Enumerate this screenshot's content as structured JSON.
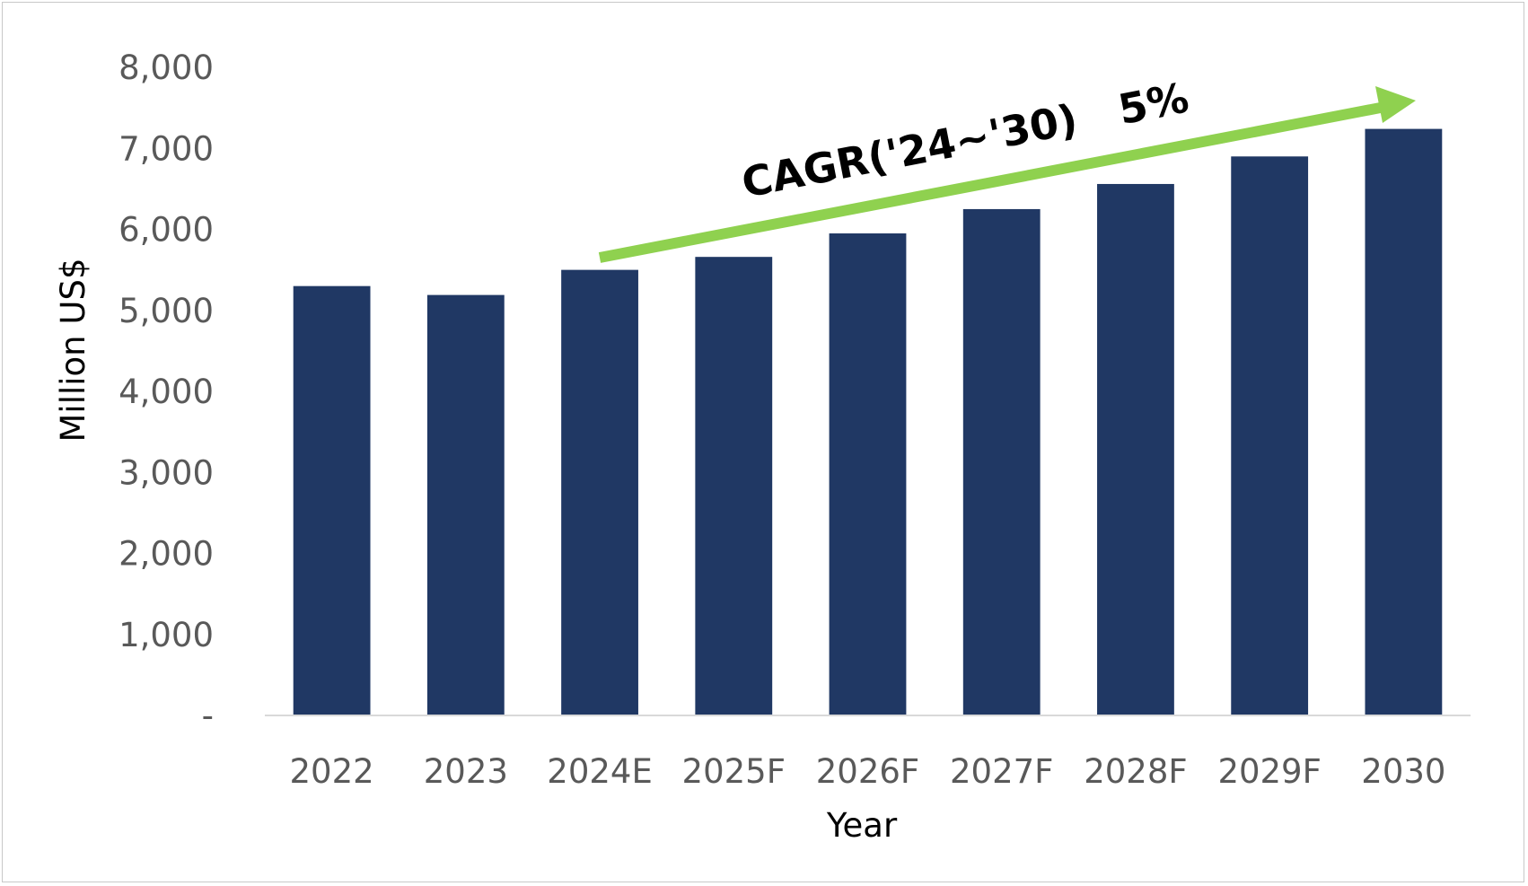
{
  "chart_data": {
    "type": "bar",
    "categories": [
      "2022",
      "2023",
      "2024E",
      "2025F",
      "2026F",
      "2027F",
      "2028F",
      "2029F",
      "2030"
    ],
    "values": [
      5300,
      5190,
      5500,
      5660,
      5950,
      6250,
      6560,
      6900,
      7240
    ],
    "xlabel": "Year",
    "ylabel": "Million US$",
    "ylim": [
      0,
      8000
    ],
    "yticks": [
      0,
      1000,
      2000,
      3000,
      4000,
      5000,
      6000,
      7000,
      8000
    ],
    "ytick_labels": [
      "-",
      "1,000",
      "2,000",
      "3,000",
      "4,000",
      "5,000",
      "6,000",
      "7,000",
      "8,000"
    ],
    "grid": false,
    "legend": "none",
    "bar_color": "#203864",
    "annotation": {
      "text": "CAGR('24~'30)   5%",
      "arrow_color": "#8fd14f",
      "from_category": "2024E",
      "to_category": "2030"
    }
  }
}
